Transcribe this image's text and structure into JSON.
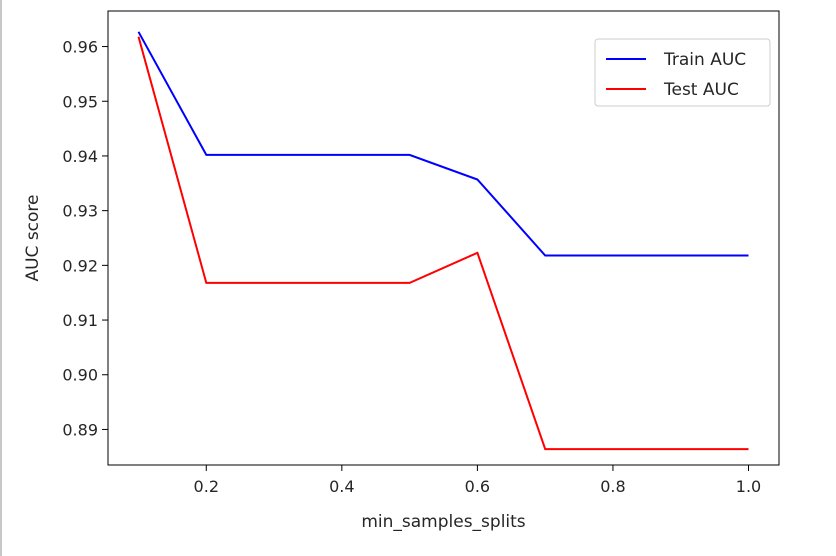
{
  "chart_data": {
    "type": "line",
    "title": "",
    "xlabel": "min_samples_splits",
    "ylabel": "AUC score",
    "xlim": [
      0.055,
      1.045
    ],
    "ylim": [
      0.8835,
      0.9665
    ],
    "xticks": [
      0.2,
      0.4,
      0.6,
      0.8,
      1.0
    ],
    "xtick_labels": [
      "0.2",
      "0.4",
      "0.6",
      "0.8",
      "1.0"
    ],
    "yticks": [
      0.89,
      0.9,
      0.91,
      0.92,
      0.93,
      0.94,
      0.95,
      0.96
    ],
    "ytick_labels": [
      "0.89",
      "0.90",
      "0.91",
      "0.92",
      "0.93",
      "0.94",
      "0.95",
      "0.96"
    ],
    "grid": false,
    "legend_position": "top-right",
    "x": [
      0.1,
      0.2,
      0.5,
      0.6,
      0.7,
      1.0
    ],
    "series": [
      {
        "name": "Train AUC",
        "color": "#0000ff",
        "values": [
          0.9627,
          0.9402,
          0.9402,
          0.9357,
          0.9218,
          0.9218
        ]
      },
      {
        "name": "Test AUC",
        "color": "#ff0000",
        "values": [
          0.9618,
          0.9168,
          0.9168,
          0.9223,
          0.8864,
          0.8864
        ]
      }
    ]
  }
}
